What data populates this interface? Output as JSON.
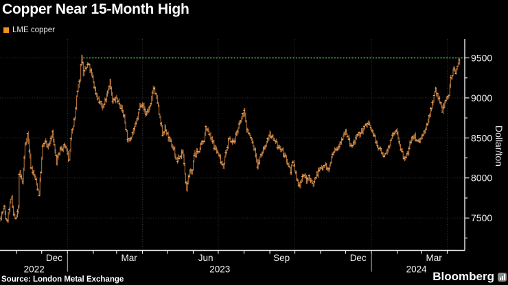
{
  "legend": {
    "label": "LME copper",
    "swatch_color": "#f0941e"
  },
  "source": "Source: London Metal Exchange",
  "brand": {
    "name": "Bloomberg",
    "icon": "bar-chart-icon"
  },
  "chart_data": {
    "type": "line",
    "title": "Copper Near 15-Month High",
    "ylabel": "Dollar/ton",
    "xlabel": "",
    "legend_position": "top-left",
    "grid": "dotted",
    "y_axis": {
      "ticks": [
        9500,
        9000,
        8500,
        8000,
        7500
      ],
      "minor_ticks": [
        9250,
        8750,
        8250,
        7750,
        7250
      ],
      "range": [
        7095,
        9735
      ]
    },
    "x_axis": {
      "range": [
        "2022-10-12",
        "2024-04-22"
      ],
      "month_labels": [
        {
          "text": "Dec",
          "date": "2022-12-16"
        },
        {
          "text": "Mar",
          "date": "2023-03-16"
        },
        {
          "text": "Jun",
          "date": "2023-06-16"
        },
        {
          "text": "Sep",
          "date": "2023-09-15"
        },
        {
          "text": "Dec",
          "date": "2023-12-16"
        },
        {
          "text": "Mar",
          "date": "2024-03-16"
        }
      ],
      "year_labels": [
        {
          "text": "2022",
          "date": "2022-11-22"
        },
        {
          "text": "2023",
          "date": "2023-07-03"
        },
        {
          "text": "2024",
          "date": "2024-02-24"
        }
      ],
      "year_separators": [
        "2023-01-01",
        "2024-01-01"
      ]
    },
    "high_line": {
      "value": 9500,
      "color": "#46d246",
      "start": "2023-01-20"
    },
    "series": [
      {
        "name": "LME copper",
        "color": "#c17c3e",
        "highlight_color": "#f4b26e",
        "points": [
          [
            "2022-10-13",
            7520
          ],
          [
            "2022-10-17",
            7630
          ],
          [
            "2022-10-20",
            7440
          ],
          [
            "2022-10-26",
            7770
          ],
          [
            "2022-10-28",
            7560
          ],
          [
            "2022-10-31",
            7470
          ],
          [
            "2022-11-03",
            7620
          ],
          [
            "2022-11-04",
            8070
          ],
          [
            "2022-11-08",
            7950
          ],
          [
            "2022-11-11",
            8400
          ],
          [
            "2022-11-14",
            8550
          ],
          [
            "2022-11-18",
            8150
          ],
          [
            "2022-11-23",
            8000
          ],
          [
            "2022-11-28",
            7800
          ],
          [
            "2022-12-02",
            8380
          ],
          [
            "2022-12-05",
            8450
          ],
          [
            "2022-12-09",
            8390
          ],
          [
            "2022-12-14",
            8550
          ],
          [
            "2022-12-19",
            8200
          ],
          [
            "2022-12-23",
            8350
          ],
          [
            "2022-12-29",
            8400
          ],
          [
            "2023-01-03",
            8200
          ],
          [
            "2023-01-06",
            8600
          ],
          [
            "2023-01-10",
            8750
          ],
          [
            "2023-01-12",
            9000
          ],
          [
            "2023-01-16",
            9250
          ],
          [
            "2023-01-18",
            9550
          ],
          [
            "2023-01-20",
            9300
          ],
          [
            "2023-01-26",
            9420
          ],
          [
            "2023-01-31",
            9250
          ],
          [
            "2023-02-03",
            9100
          ],
          [
            "2023-02-08",
            8950
          ],
          [
            "2023-02-13",
            8880
          ],
          [
            "2023-02-17",
            9050
          ],
          [
            "2023-02-21",
            9200
          ],
          [
            "2023-02-24",
            8950
          ],
          [
            "2023-03-01",
            8990
          ],
          [
            "2023-03-06",
            8900
          ],
          [
            "2023-03-10",
            8760
          ],
          [
            "2023-03-15",
            8440
          ],
          [
            "2023-03-20",
            8570
          ],
          [
            "2023-03-24",
            8660
          ],
          [
            "2023-03-29",
            8900
          ],
          [
            "2023-03-31",
            8950
          ],
          [
            "2023-04-05",
            8800
          ],
          [
            "2023-04-11",
            8900
          ],
          [
            "2023-04-14",
            9150
          ],
          [
            "2023-04-19",
            8950
          ],
          [
            "2023-04-21",
            8800
          ],
          [
            "2023-04-25",
            8550
          ],
          [
            "2023-04-28",
            8620
          ],
          [
            "2023-05-03",
            8480
          ],
          [
            "2023-05-09",
            8350
          ],
          [
            "2023-05-12",
            8210
          ],
          [
            "2023-05-17",
            8280
          ],
          [
            "2023-05-19",
            8350
          ],
          [
            "2023-05-24",
            7880
          ],
          [
            "2023-05-26",
            8020
          ],
          [
            "2023-05-31",
            8100
          ],
          [
            "2023-06-02",
            8280
          ],
          [
            "2023-06-08",
            8350
          ],
          [
            "2023-06-14",
            8480
          ],
          [
            "2023-06-16",
            8640
          ],
          [
            "2023-06-22",
            8500
          ],
          [
            "2023-06-27",
            8380
          ],
          [
            "2023-06-30",
            8320
          ],
          [
            "2023-07-07",
            8150
          ],
          [
            "2023-07-12",
            8400
          ],
          [
            "2023-07-14",
            8500
          ],
          [
            "2023-07-19",
            8440
          ],
          [
            "2023-07-26",
            8650
          ],
          [
            "2023-08-01",
            8840
          ],
          [
            "2023-08-04",
            8620
          ],
          [
            "2023-08-09",
            8500
          ],
          [
            "2023-08-15",
            8300
          ],
          [
            "2023-08-17",
            8150
          ],
          [
            "2023-08-22",
            8300
          ],
          [
            "2023-08-25",
            8380
          ],
          [
            "2023-08-30",
            8500
          ],
          [
            "2023-09-01",
            8550
          ],
          [
            "2023-09-06",
            8450
          ],
          [
            "2023-09-12",
            8380
          ],
          [
            "2023-09-15",
            8350
          ],
          [
            "2023-09-20",
            8250
          ],
          [
            "2023-09-26",
            8100
          ],
          [
            "2023-09-29",
            8200
          ],
          [
            "2023-10-04",
            7950
          ],
          [
            "2023-10-06",
            7900
          ],
          [
            "2023-10-11",
            8050
          ],
          [
            "2023-10-16",
            7960
          ],
          [
            "2023-10-18",
            8020
          ],
          [
            "2023-10-23",
            7920
          ],
          [
            "2023-10-27",
            8050
          ],
          [
            "2023-11-01",
            8120
          ],
          [
            "2023-11-06",
            8180
          ],
          [
            "2023-11-10",
            8080
          ],
          [
            "2023-11-15",
            8280
          ],
          [
            "2023-11-21",
            8380
          ],
          [
            "2023-11-24",
            8450
          ],
          [
            "2023-11-29",
            8550
          ],
          [
            "2023-12-01",
            8600
          ],
          [
            "2023-12-06",
            8420
          ],
          [
            "2023-12-08",
            8380
          ],
          [
            "2023-12-13",
            8480
          ],
          [
            "2023-12-18",
            8550
          ],
          [
            "2023-12-22",
            8610
          ],
          [
            "2023-12-28",
            8690
          ],
          [
            "2024-01-03",
            8550
          ],
          [
            "2024-01-08",
            8400
          ],
          [
            "2024-01-12",
            8350
          ],
          [
            "2024-01-17",
            8260
          ],
          [
            "2024-01-22",
            8400
          ],
          [
            "2024-01-26",
            8520
          ],
          [
            "2024-01-31",
            8600
          ],
          [
            "2024-02-05",
            8380
          ],
          [
            "2024-02-09",
            8220
          ],
          [
            "2024-02-14",
            8320
          ],
          [
            "2024-02-16",
            8450
          ],
          [
            "2024-02-21",
            8520
          ],
          [
            "2024-02-27",
            8460
          ],
          [
            "2024-03-01",
            8520
          ],
          [
            "2024-03-06",
            8580
          ],
          [
            "2024-03-08",
            8680
          ],
          [
            "2024-03-13",
            8900
          ],
          [
            "2024-03-18",
            9100
          ],
          [
            "2024-03-21",
            9000
          ],
          [
            "2024-03-26",
            8850
          ],
          [
            "2024-03-28",
            8910
          ],
          [
            "2024-04-03",
            9050
          ],
          [
            "2024-04-05",
            9250
          ],
          [
            "2024-04-09",
            9350
          ],
          [
            "2024-04-11",
            9300
          ],
          [
            "2024-04-15",
            9500
          ],
          [
            "2024-04-16",
            9450
          ]
        ]
      }
    ]
  }
}
